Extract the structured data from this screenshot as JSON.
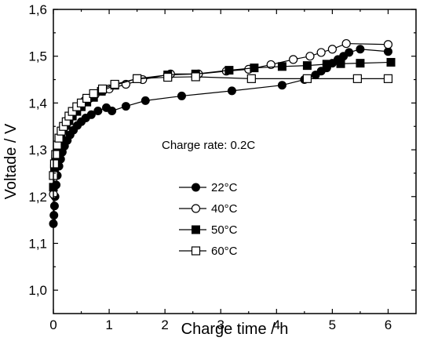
{
  "chart_data": {
    "type": "line",
    "xlabel": "Charge time / h",
    "ylabel": "Voltade / V",
    "annotation": "Charge rate: 0.2C",
    "xlim": [
      0,
      6.5
    ],
    "ylim": [
      0.95,
      1.6
    ],
    "x_ticks": [
      0,
      1,
      2,
      3,
      4,
      5,
      6
    ],
    "x_tick_labels": [
      "0",
      "1",
      "2",
      "3",
      "4",
      "5",
      "6"
    ],
    "y_ticks": [
      1.0,
      1.1,
      1.2,
      1.3,
      1.4,
      1.5,
      1.6
    ],
    "y_tick_labels": [
      "1,0",
      "1,1",
      "1,2",
      "1,3",
      "1,4",
      "1,5",
      "1,6"
    ],
    "legend_position": "center-left",
    "series": [
      {
        "name": "22°C",
        "marker": "filled-circle",
        "x": [
          0,
          0.01,
          0.02,
          0.03,
          0.05,
          0.07,
          0.1,
          0.13,
          0.16,
          0.2,
          0.25,
          0.3,
          0.36,
          0.43,
          0.5,
          0.58,
          0.68,
          0.8,
          0.95,
          1.05,
          1.3,
          1.65,
          2.3,
          3.2,
          4.1,
          4.5,
          4.7,
          4.8,
          4.9,
          5.0,
          5.1,
          5.2,
          5.3,
          5.5,
          6.0
        ],
        "y": [
          1.142,
          1.16,
          1.18,
          1.2,
          1.225,
          1.245,
          1.265,
          1.28,
          1.295,
          1.308,
          1.32,
          1.332,
          1.342,
          1.352,
          1.36,
          1.368,
          1.375,
          1.383,
          1.39,
          1.383,
          1.393,
          1.405,
          1.415,
          1.426,
          1.438,
          1.45,
          1.46,
          1.468,
          1.475,
          1.485,
          1.493,
          1.5,
          1.508,
          1.515,
          1.51
        ]
      },
      {
        "name": "40°C",
        "marker": "open-circle",
        "x": [
          0,
          0.02,
          0.04,
          0.07,
          0.1,
          0.14,
          0.18,
          0.23,
          0.28,
          0.34,
          0.4,
          0.48,
          0.56,
          0.65,
          0.75,
          0.88,
          1.0,
          1.3,
          1.6,
          2.1,
          2.6,
          3.1,
          3.5,
          3.9,
          4.3,
          4.6,
          4.8,
          5.0,
          5.25,
          6.0
        ],
        "y": [
          1.205,
          1.25,
          1.278,
          1.3,
          1.318,
          1.332,
          1.345,
          1.355,
          1.365,
          1.375,
          1.385,
          1.395,
          1.405,
          1.41,
          1.418,
          1.425,
          1.43,
          1.44,
          1.45,
          1.462,
          1.462,
          1.468,
          1.472,
          1.482,
          1.493,
          1.5,
          1.508,
          1.515,
          1.527,
          1.525
        ]
      },
      {
        "name": "50°C",
        "marker": "filled-square",
        "x": [
          0,
          0.02,
          0.04,
          0.07,
          0.1,
          0.14,
          0.18,
          0.23,
          0.28,
          0.34,
          0.42,
          0.5,
          0.6,
          0.72,
          0.86,
          1.1,
          1.5,
          2.05,
          2.55,
          3.15,
          3.6,
          4.1,
          4.55,
          4.9,
          5.15,
          5.5,
          6.05
        ],
        "y": [
          1.22,
          1.26,
          1.28,
          1.3,
          1.315,
          1.33,
          1.342,
          1.352,
          1.362,
          1.372,
          1.382,
          1.392,
          1.402,
          1.412,
          1.425,
          1.438,
          1.452,
          1.46,
          1.462,
          1.47,
          1.475,
          1.478,
          1.48,
          1.483,
          1.484,
          1.485,
          1.487
        ]
      },
      {
        "name": "60°C",
        "marker": "open-square",
        "x": [
          0,
          0.02,
          0.04,
          0.07,
          0.1,
          0.14,
          0.18,
          0.23,
          0.28,
          0.34,
          0.42,
          0.5,
          0.6,
          0.72,
          0.88,
          1.1,
          1.5,
          2.05,
          2.55,
          3.55,
          4.55,
          5.45,
          6.0
        ],
        "y": [
          1.245,
          1.27,
          1.29,
          1.31,
          1.325,
          1.34,
          1.35,
          1.36,
          1.372,
          1.382,
          1.392,
          1.4,
          1.41,
          1.42,
          1.43,
          1.44,
          1.452,
          1.455,
          1.456,
          1.452,
          1.452,
          1.452,
          1.452
        ]
      }
    ]
  }
}
